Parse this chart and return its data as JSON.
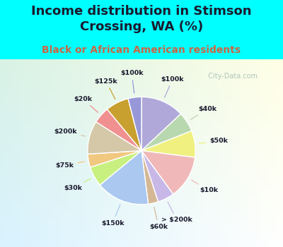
{
  "title": "Income distribution in Stimson\nCrossing, WA (%)",
  "subtitle": "Black or African American residents",
  "bg_color": "#00FFFF",
  "chart_bg_color": "#e8f8f0",
  "watermark": "City-Data.com",
  "slices": [
    {
      "label": "$100k",
      "value": 13,
      "color": "#b0a8d8"
    },
    {
      "label": "$40k",
      "value": 6,
      "color": "#b8d8b0"
    },
    {
      "label": "$50k",
      "value": 8,
      "color": "#f0f080"
    },
    {
      "label": "$10k",
      "value": 13,
      "color": "#f0b8b8"
    },
    {
      "label": "> $200k",
      "value": 5,
      "color": "#c8b8e8"
    },
    {
      "label": "$60k",
      "value": 3,
      "color": "#d4b896"
    },
    {
      "label": "$150k",
      "value": 16,
      "color": "#aac8f0"
    },
    {
      "label": "$30k",
      "value": 6,
      "color": "#c8f080"
    },
    {
      "label": "$75k",
      "value": 4,
      "color": "#f0c880"
    },
    {
      "label": "$200k",
      "value": 10,
      "color": "#d4c8a8"
    },
    {
      "label": "$20k",
      "value": 5,
      "color": "#f09090"
    },
    {
      "label": "$125k",
      "value": 7,
      "color": "#c8a030"
    },
    {
      "label": "$100k_b",
      "value": 4,
      "color": "#9898d8"
    }
  ],
  "start_angle": 90,
  "title_fontsize": 13,
  "subtitle_fontsize": 10,
  "title_color": "#1a1a2e",
  "subtitle_color": "#cc6644"
}
